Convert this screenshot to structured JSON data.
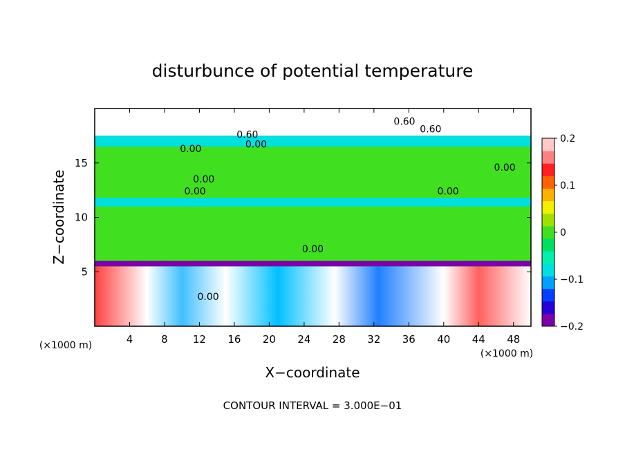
{
  "chart_data": {
    "type": "heatmap",
    "title": "disturbunce of potential temperature",
    "xlabel": "X−coordinate",
    "ylabel": "Z−coordinate",
    "x_unit_left": "(×1000 m)",
    "x_unit_right": "(×1000 m)",
    "xlim": [
      0,
      50
    ],
    "ylim": [
      0,
      20
    ],
    "x_ticks": [
      "4",
      "8",
      "12",
      "16",
      "20",
      "24",
      "28",
      "32",
      "36",
      "40",
      "44",
      "48"
    ],
    "x_tick_values": [
      4,
      8,
      12,
      16,
      20,
      24,
      28,
      32,
      36,
      40,
      44,
      48
    ],
    "y_ticks": [
      "5",
      "10",
      "15"
    ],
    "y_tick_values": [
      5,
      10,
      15
    ],
    "colorbar": {
      "range": [
        -0.2,
        0.2
      ],
      "tick_labels": [
        "0.2",
        "0.1",
        "0",
        "−0.1",
        "−0.2"
      ],
      "tick_values": [
        0.2,
        0.1,
        0,
        -0.1,
        -0.2
      ],
      "colors": [
        "#7b00a8",
        "#2800d8",
        "#0040ff",
        "#00a0ff",
        "#00e0e0",
        "#00f0b0",
        "#00e060",
        "#40e020",
        "#a0e000",
        "#f0f000",
        "#ffb000",
        "#ff6000",
        "#ff2020",
        "#ff8080",
        "#ffc8c8"
      ]
    },
    "bands": [
      {
        "z": [
          0,
          5.5
        ],
        "mix": true,
        "value": 0.25
      },
      {
        "z": [
          5.5,
          6.0
        ],
        "value": -0.2
      },
      {
        "z": [
          6.0,
          11.0
        ],
        "value": 0.0
      },
      {
        "z": [
          11.0,
          11.8
        ],
        "value": -0.08
      },
      {
        "z": [
          11.8,
          16.5
        ],
        "value": 0.0
      },
      {
        "z": [
          16.5,
          17.5
        ],
        "value": -0.09
      },
      {
        "z": [
          17.5,
          20.0
        ],
        "value": 0.25
      }
    ],
    "contour_labels": [
      {
        "x": 17.5,
        "z": 17.3,
        "text": "0.60"
      },
      {
        "x": 35.5,
        "z": 18.5,
        "text": "0.60"
      },
      {
        "x": 38.5,
        "z": 17.8,
        "text": "0.60"
      },
      {
        "x": 11.0,
        "z": 16.0,
        "text": "0.00"
      },
      {
        "x": 18.5,
        "z": 16.4,
        "text": "0.00"
      },
      {
        "x": 12.5,
        "z": 13.2,
        "text": "0.00"
      },
      {
        "x": 11.5,
        "z": 12.1,
        "text": "0.00"
      },
      {
        "x": 47.0,
        "z": 14.3,
        "text": "0.00"
      },
      {
        "x": 40.5,
        "z": 12.1,
        "text": "0.00"
      },
      {
        "x": 25.0,
        "z": 6.8,
        "text": "0.00"
      },
      {
        "x": 13.0,
        "z": 2.4,
        "text": "0.00"
      }
    ],
    "contour_interval": "CONTOUR INTERVAL = 3.000E−01"
  }
}
